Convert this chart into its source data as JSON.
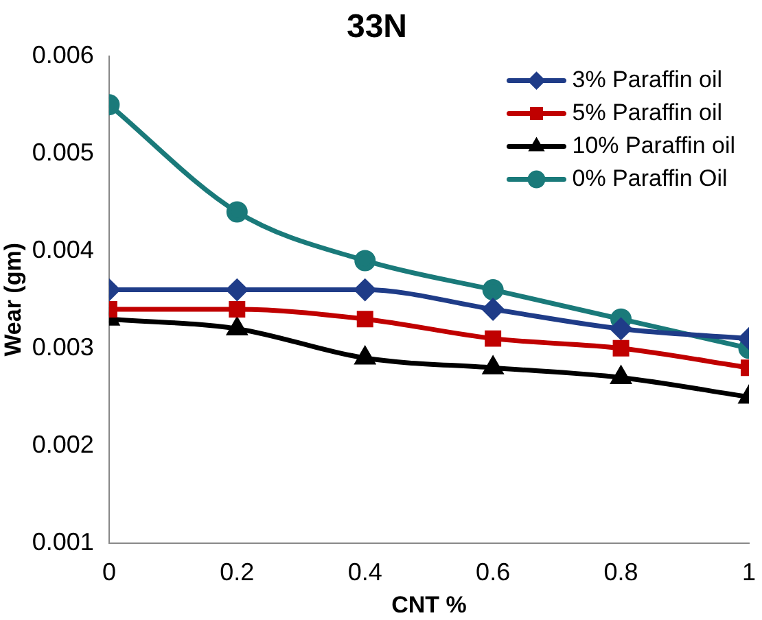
{
  "chart_data": {
    "type": "line",
    "title": "33N",
    "xlabel": "CNT %",
    "ylabel": "Wear (gm)",
    "x": [
      0,
      0.2,
      0.4,
      0.6,
      0.8,
      1
    ],
    "series": [
      {
        "name": "3% Paraffin oil",
        "color": "#1f3c88",
        "marker": "diamond",
        "values": [
          0.0036,
          0.0036,
          0.0036,
          0.0034,
          0.0032,
          0.0031
        ]
      },
      {
        "name": "5% Paraffin oil",
        "color": "#c00000",
        "marker": "square",
        "values": [
          0.0034,
          0.0034,
          0.0033,
          0.0031,
          0.003,
          0.0028
        ]
      },
      {
        "name": "10% Paraffin oil",
        "color": "#000000",
        "marker": "triangle",
        "values": [
          0.0033,
          0.0032,
          0.0029,
          0.0028,
          0.0027,
          0.0025
        ]
      },
      {
        "name": "0% Paraffin Oil",
        "color": "#1a7a7a",
        "marker": "circle",
        "values": [
          0.0055,
          0.0044,
          0.0039,
          0.0036,
          0.0033,
          0.003
        ]
      }
    ],
    "xlim": [
      0,
      1
    ],
    "xticks": [
      0,
      0.2,
      0.4,
      0.6,
      0.8,
      1
    ],
    "ylim": [
      0.001,
      0.006
    ],
    "yticks": [
      0.001,
      0.002,
      0.003,
      0.004,
      0.005,
      0.006
    ],
    "grid": false,
    "legend": "top right",
    "line_style": "solid"
  }
}
